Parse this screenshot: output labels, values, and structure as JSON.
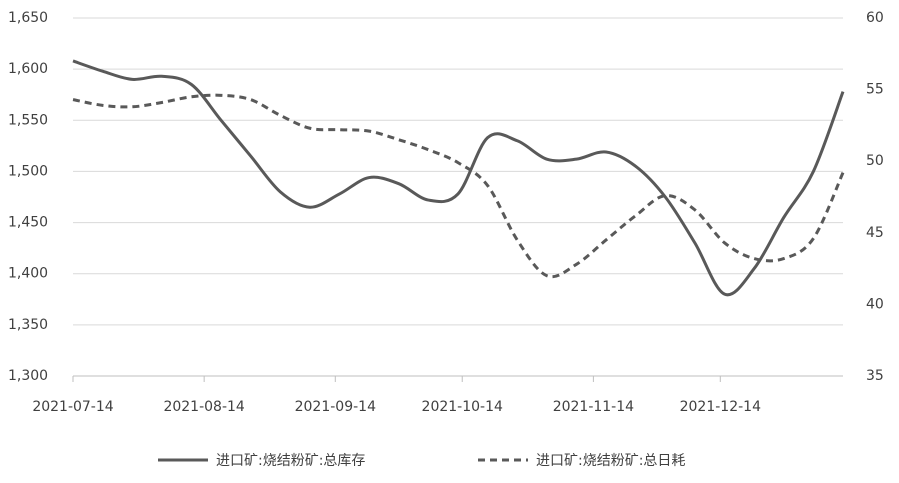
{
  "chart_data": {
    "type": "line",
    "x": [
      "2021-07-14",
      "2021-07-21",
      "2021-07-28",
      "2021-08-04",
      "2021-08-11",
      "2021-08-18",
      "2021-08-25",
      "2021-09-01",
      "2021-09-08",
      "2021-09-15",
      "2021-09-22",
      "2021-09-29",
      "2021-10-06",
      "2021-10-13",
      "2021-10-20",
      "2021-10-27",
      "2021-11-03",
      "2021-11-10",
      "2021-11-17",
      "2021-11-24",
      "2021-12-01",
      "2021-12-08",
      "2021-12-15",
      "2021-12-22",
      "2021-12-29",
      "2022-01-05",
      "2022-01-12"
    ],
    "xticks": [
      "2021-07-14",
      "2021-08-14",
      "2021-09-14",
      "2021-10-14",
      "2021-11-14",
      "2021-12-14"
    ],
    "series": [
      {
        "name": "进口矿:烧结粉矿:总库存",
        "color": "#595959",
        "dash": false,
        "values": [
          1608,
          1598,
          1590,
          1593,
          1585,
          1550,
          1515,
          1480,
          1465,
          1478,
          1494,
          1488,
          1472,
          1478,
          1533,
          1530,
          1512,
          1512,
          1519,
          1505,
          1475,
          1430,
          1380,
          1405,
          1455,
          1500,
          1578
        ]
      },
      {
        "name": "进口矿:烧结粉矿:总日耗",
        "color": "#595959",
        "dash": true,
        "axis": "y2",
        "values": [
          54.3,
          53.9,
          53.8,
          54.1,
          54.5,
          54.6,
          54.3,
          53.2,
          52.3,
          52.2,
          52.1,
          51.5,
          50.8,
          49.9,
          48.3,
          44.5,
          42.0,
          42.8,
          44.5,
          46.2,
          47.6,
          46.6,
          44.3,
          43.2,
          43.2,
          44.6,
          49.2
        ]
      }
    ],
    "ylim": [
      1300,
      1650
    ],
    "yticks": [
      {
        "value": 1300,
        "label": "1,300"
      },
      {
        "value": 1350,
        "label": "1,350"
      },
      {
        "value": 1400,
        "label": "1,400"
      },
      {
        "value": 1450,
        "label": "1,450"
      },
      {
        "value": 1500,
        "label": "1,500"
      },
      {
        "value": 1550,
        "label": "1,550"
      },
      {
        "value": 1600,
        "label": "1,600"
      },
      {
        "value": 1650,
        "label": "1,650"
      }
    ],
    "y2lim": [
      35,
      60
    ],
    "y2ticks": [
      35,
      40,
      45,
      50,
      55,
      60
    ],
    "grid": true,
    "legend": "bottom"
  }
}
